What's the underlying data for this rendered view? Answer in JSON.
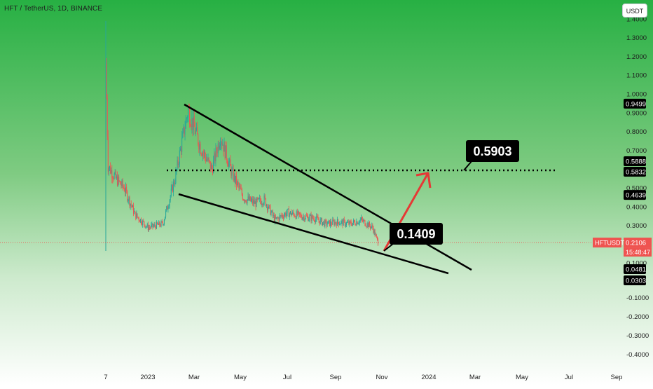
{
  "header": {
    "title": "HFT / TetherUS, 1D, BINANCE"
  },
  "currency_button": "USDT",
  "colors": {
    "up": "#26a69a",
    "down": "#ef5350",
    "arrow": "#e53935",
    "line": "#000000",
    "bg_top": "#2fb24c",
    "bg_bottom": "#ffffff"
  },
  "chart_data": {
    "type": "candlestick",
    "title": "HFT / TetherUS, 1D, BINANCE",
    "ylim": [
      -0.4,
      1.4
    ],
    "y_ticks": [
      "-0.4000",
      "-0.3000",
      "-0.2000",
      "-0.1000",
      "0.1000",
      "0.3000",
      "0.4000",
      "0.5000",
      "0.7000",
      "0.8000",
      "0.9000",
      "1.0000",
      "1.1000",
      "1.2000",
      "1.3000",
      "1.4000"
    ],
    "x_ticks": [
      "7",
      "2023",
      "Mar",
      "May",
      "Jul",
      "Sep",
      "Nov",
      "2024",
      "Mar",
      "May",
      "Jul",
      "Sep"
    ],
    "price_points": [
      [
        "2022-11-07",
        1.16
      ],
      [
        "2022-11-10",
        0.62
      ],
      [
        "2022-11-20",
        0.55
      ],
      [
        "2022-12-01",
        0.5
      ],
      [
        "2022-12-15",
        0.36
      ],
      [
        "2023-01-01",
        0.29
      ],
      [
        "2023-01-20",
        0.31
      ],
      [
        "2023-02-05",
        0.55
      ],
      [
        "2023-02-22",
        0.92
      ],
      [
        "2023-03-10",
        0.72
      ],
      [
        "2023-03-25",
        0.6
      ],
      [
        "2023-04-05",
        0.78
      ],
      [
        "2023-04-20",
        0.58
      ],
      [
        "2023-05-05",
        0.45
      ],
      [
        "2023-05-20",
        0.42
      ],
      [
        "2023-06-01",
        0.44
      ],
      [
        "2023-06-15",
        0.33
      ],
      [
        "2023-07-01",
        0.37
      ],
      [
        "2023-07-20",
        0.35
      ],
      [
        "2023-08-05",
        0.34
      ],
      [
        "2023-08-20",
        0.31
      ],
      [
        "2023-09-05",
        0.32
      ],
      [
        "2023-09-20",
        0.31
      ],
      [
        "2023-10-05",
        0.33
      ],
      [
        "2023-10-20",
        0.29
      ],
      [
        "2023-10-27",
        0.21
      ]
    ],
    "annotations": {
      "target": "0.5903",
      "support": "0.1409"
    },
    "price_labels": [
      {
        "value": 0.9499,
        "text": "0.9499",
        "color": "#000000"
      },
      {
        "value": 0.5888,
        "text": "0.5888",
        "color": "#000000"
      },
      {
        "value": 0.5832,
        "text": "0.5832",
        "color": "#000000"
      },
      {
        "value": 0.4639,
        "text": "0.4639",
        "color": "#000000"
      },
      {
        "value": 0.2106,
        "text": "0.2106",
        "color": "#ef5350"
      },
      {
        "value": 0.0481,
        "text": "0.0481",
        "color": "#000000"
      },
      {
        "value": 0.0303,
        "text": "0.0303",
        "color": "#000000"
      }
    ],
    "symbol_label": "HFTUSDT",
    "last_price": "0.2106",
    "countdown": "15:48:47"
  }
}
